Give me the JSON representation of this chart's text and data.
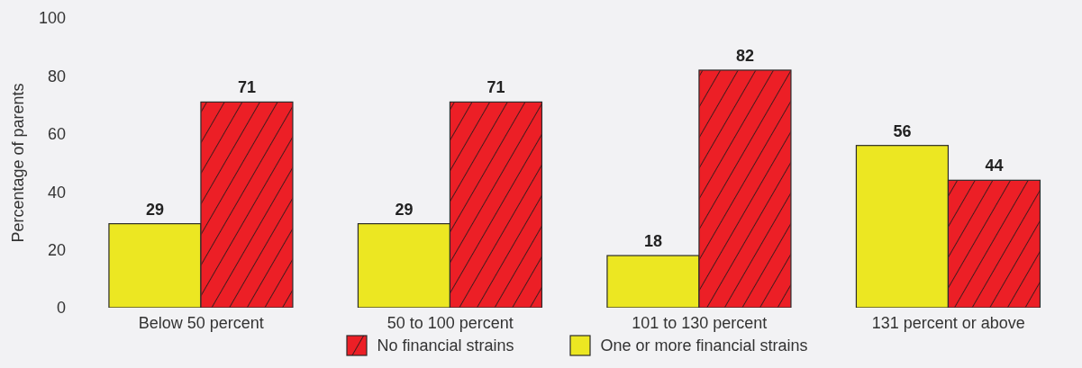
{
  "chart_data": {
    "type": "bar",
    "ylabel": "Percentage of parents",
    "categories": [
      "Below 50 percent",
      "50 to 100 percent",
      "101 to 130 percent",
      "131 percent or above"
    ],
    "series": [
      {
        "name": "One or more financial strains",
        "color": "#ece722",
        "values": [
          29,
          29,
          18,
          56
        ]
      },
      {
        "name": "No financial strains",
        "color": "#ec1f26",
        "values": [
          71,
          71,
          82,
          44
        ]
      }
    ],
    "ylim": [
      0,
      100
    ],
    "yticks": [
      0,
      20,
      40,
      60,
      80,
      100
    ],
    "data_labels": true,
    "legend": "bottom"
  }
}
